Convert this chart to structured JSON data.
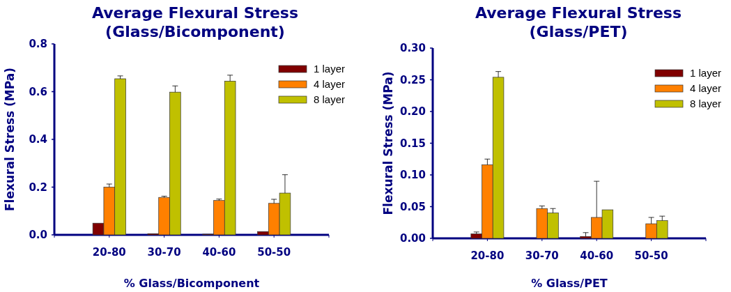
{
  "chart_data": [
    {
      "type": "bar",
      "title": "Average Flexural Stress\n(Glass/Bicomponent)",
      "xlabel": "% Glass/Bicomponent",
      "ylabel": "Flexural Stress (MPa)",
      "categories": [
        "20-80",
        "30-70",
        "40-60",
        "50-50"
      ],
      "ylim": [
        0,
        0.8
      ],
      "yticks": [
        {
          "value": 0,
          "label": "0.0"
        },
        0.2,
        0.4,
        0.6,
        0.8
      ],
      "legend": "top right",
      "grid": false,
      "series": [
        {
          "name": "1 layer",
          "color": "#800000",
          "values": [
            0.049,
            0.005,
            0.003,
            0.014
          ]
        },
        {
          "name": "4 layer",
          "color": "#ff8000",
          "values": [
            0.2,
            0.157,
            0.144,
            0.132
          ],
          "errors": [
            [
              0.2,
              0.213
            ],
            [
              0.157,
              0.162
            ],
            [
              0.144,
              0.15
            ],
            [
              0.132,
              0.149
            ]
          ]
        },
        {
          "name": "8 layer",
          "color": "#c0c000",
          "values": [
            0.654,
            0.598,
            0.644,
            0.175
          ],
          "errors": [
            [
              0.654,
              0.666
            ],
            [
              0.598,
              0.624
            ],
            [
              0.644,
              0.669
            ],
            [
              0.175,
              0.252
            ]
          ]
        }
      ]
    },
    {
      "type": "bar",
      "title": "Average Flexural Stress\n(Glass/PET)",
      "xlabel": "% Glass/PET",
      "ylabel": "Flexural Stress (MPa)",
      "categories": [
        "20-80",
        "30-70",
        "40-60",
        "50-50"
      ],
      "ylim": [
        0,
        0.3
      ],
      "yticks": [
        {
          "value": 0,
          "label": "0.00"
        },
        {
          "value": 0.05,
          "label": "0.05"
        },
        {
          "value": 0.1,
          "label": "0.10"
        },
        {
          "value": 0.15,
          "label": "0.15"
        },
        {
          "value": 0.2,
          "label": "0.20"
        },
        {
          "value": 0.25,
          "label": "0.25"
        },
        {
          "value": 0.3,
          "label": "0.30"
        }
      ],
      "legend": "top right",
      "grid": false,
      "series": [
        {
          "name": "1 layer",
          "color": "#800000",
          "values": [
            0.007,
            null,
            0.003,
            null
          ],
          "errors": [
            [
              0.007,
              0.01
            ],
            null,
            [
              0.003,
              0.009
            ],
            null
          ]
        },
        {
          "name": "4 layer",
          "color": "#ff8000",
          "values": [
            0.116,
            0.047,
            0.033,
            0.023
          ],
          "errors": [
            [
              0.116,
              0.125
            ],
            [
              0.047,
              0.051
            ],
            [
              0.033,
              0.09
            ],
            [
              0.023,
              0.033
            ]
          ]
        },
        {
          "name": "8 layer",
          "color": "#c0c000",
          "values": [
            0.254,
            0.04,
            0.045,
            0.028
          ],
          "errors": [
            [
              0.254,
              0.263
            ],
            [
              0.04,
              0.047
            ],
            null,
            [
              0.028,
              0.035
            ]
          ]
        }
      ]
    }
  ]
}
